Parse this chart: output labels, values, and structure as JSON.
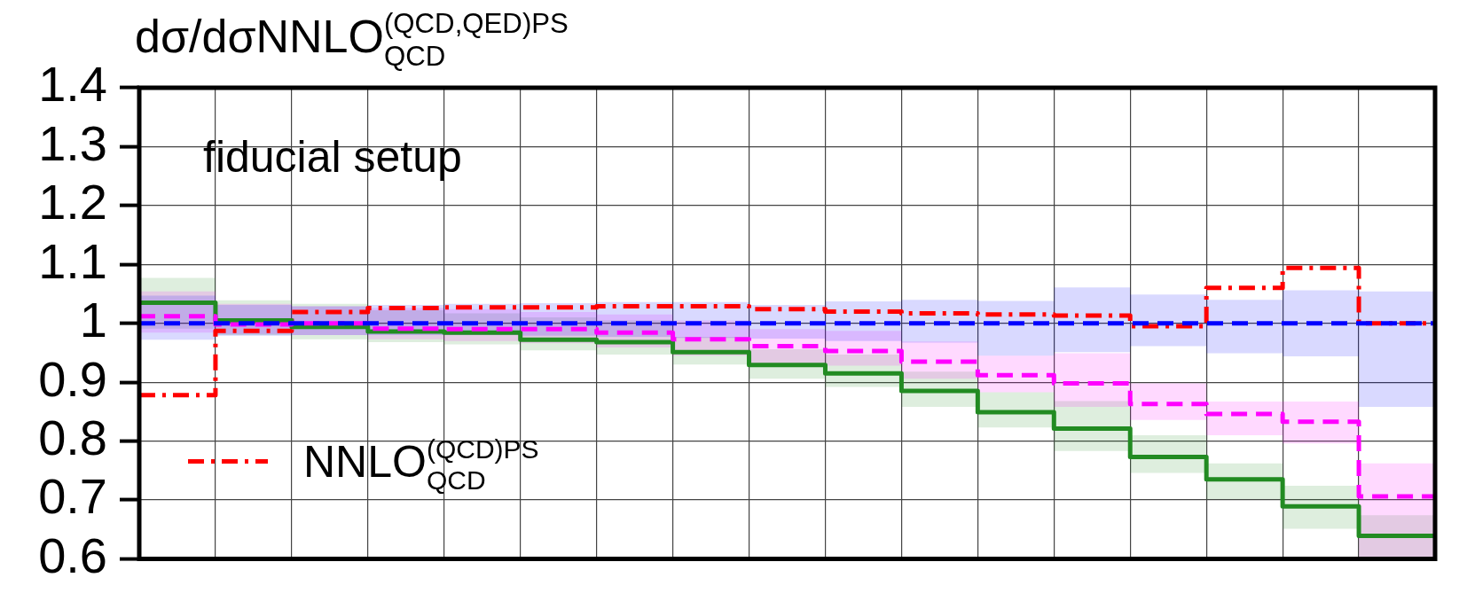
{
  "chart_data": {
    "type": "step",
    "ylabel": "dσ/dσNNLO$^{(QCD,QED)PS}$$_{QCD}$",
    "annotations": [
      "fiducial setup"
    ],
    "categories": [
      null,
      null,
      null,
      null,
      null,
      null,
      null,
      null,
      null,
      null,
      null,
      null,
      null,
      null,
      null,
      null,
      null,
      null
    ],
    "ylim": [
      0.6,
      1.4
    ],
    "yticks": [
      0.6,
      0.7,
      0.8,
      0.9,
      {
        "value": 1,
        "label": "1"
      },
      1.1,
      1.2,
      1.3,
      1.4
    ],
    "grid": true,
    "legend": "bottom left",
    "tick_labels": "y",
    "series": [
      {
        "color": "#0000ff",
        "line_style": "dashed",
        "values": [
          1,
          1,
          1,
          1,
          1,
          1,
          1,
          1,
          1,
          1,
          1,
          1,
          1,
          1,
          1,
          1,
          1,
          1
        ],
        "upper": [
          1.047,
          1.031,
          1.029,
          1.031,
          1.033,
          1.034,
          1.036,
          1.036,
          1.031,
          1.037,
          1.04,
          1.038,
          1.061,
          1.049,
          1.04,
          1.056,
          1.054,
          1.054
        ],
        "lower": [
          0.972,
          0.979,
          0.98,
          0.98,
          0.98,
          0.979,
          0.977,
          0.975,
          0.974,
          0.97,
          0.967,
          0.945,
          0.951,
          0.961,
          0.949,
          0.944,
          0.858,
          0.858
        ]
      },
      {
        "color": "#ff00ff",
        "line_style": "dashed",
        "values": [
          1.012,
          0.998,
          1,
          0.991,
          0.99,
          0.99,
          0.984,
          0.973,
          0.961,
          0.953,
          0.935,
          0.912,
          0.898,
          0.863,
          0.846,
          0.833,
          0.706,
          0.706
        ],
        "upper": [
          1.054,
          1.033,
          1.029,
          1.026,
          1.024,
          1.019,
          1.015,
          1.005,
          0.99,
          0.987,
          0.969,
          0.945,
          0.949,
          0.898,
          0.867,
          0.867,
          0.762,
          0.762
        ],
        "lower": [
          0.984,
          0.982,
          0.98,
          0.973,
          0.97,
          0.966,
          0.959,
          0.945,
          0.928,
          0.928,
          0.906,
          0.883,
          0.858,
          0.836,
          0.81,
          0.796,
          0.6,
          0.6
        ]
      },
      {
        "color": "#228b22",
        "line_style": "solid",
        "values": [
          1.035,
          1.005,
          0.994,
          0.986,
          0.984,
          0.972,
          0.968,
          0.951,
          0.929,
          0.915,
          0.885,
          0.849,
          0.821,
          0.773,
          0.735,
          0.689,
          0.639,
          0.639
        ],
        "upper": [
          1.077,
          1.039,
          1.033,
          1.022,
          1.017,
          1.01,
          1.005,
          0.977,
          0.956,
          0.947,
          0.918,
          0.883,
          0.868,
          0.81,
          0.762,
          0.724,
          0.674,
          0.674
        ],
        "lower": [
          0.991,
          0.98,
          0.973,
          0.968,
          0.964,
          0.954,
          0.947,
          0.93,
          0.906,
          0.892,
          0.858,
          0.823,
          0.783,
          0.746,
          0.701,
          0.651,
          0.6,
          0.6
        ]
      },
      {
        "name": "NNLO$_{QCD}$$^{(QCD)PS}$",
        "color": "#ff0000",
        "line_style": "dashdot",
        "values": [
          0.878,
          0.987,
          1.019,
          1.026,
          1.027,
          1.027,
          1.029,
          1.029,
          1.024,
          1.02,
          1.017,
          1.015,
          1.013,
          0.995,
          1.06,
          1.094,
          1,
          1
        ]
      }
    ]
  }
}
